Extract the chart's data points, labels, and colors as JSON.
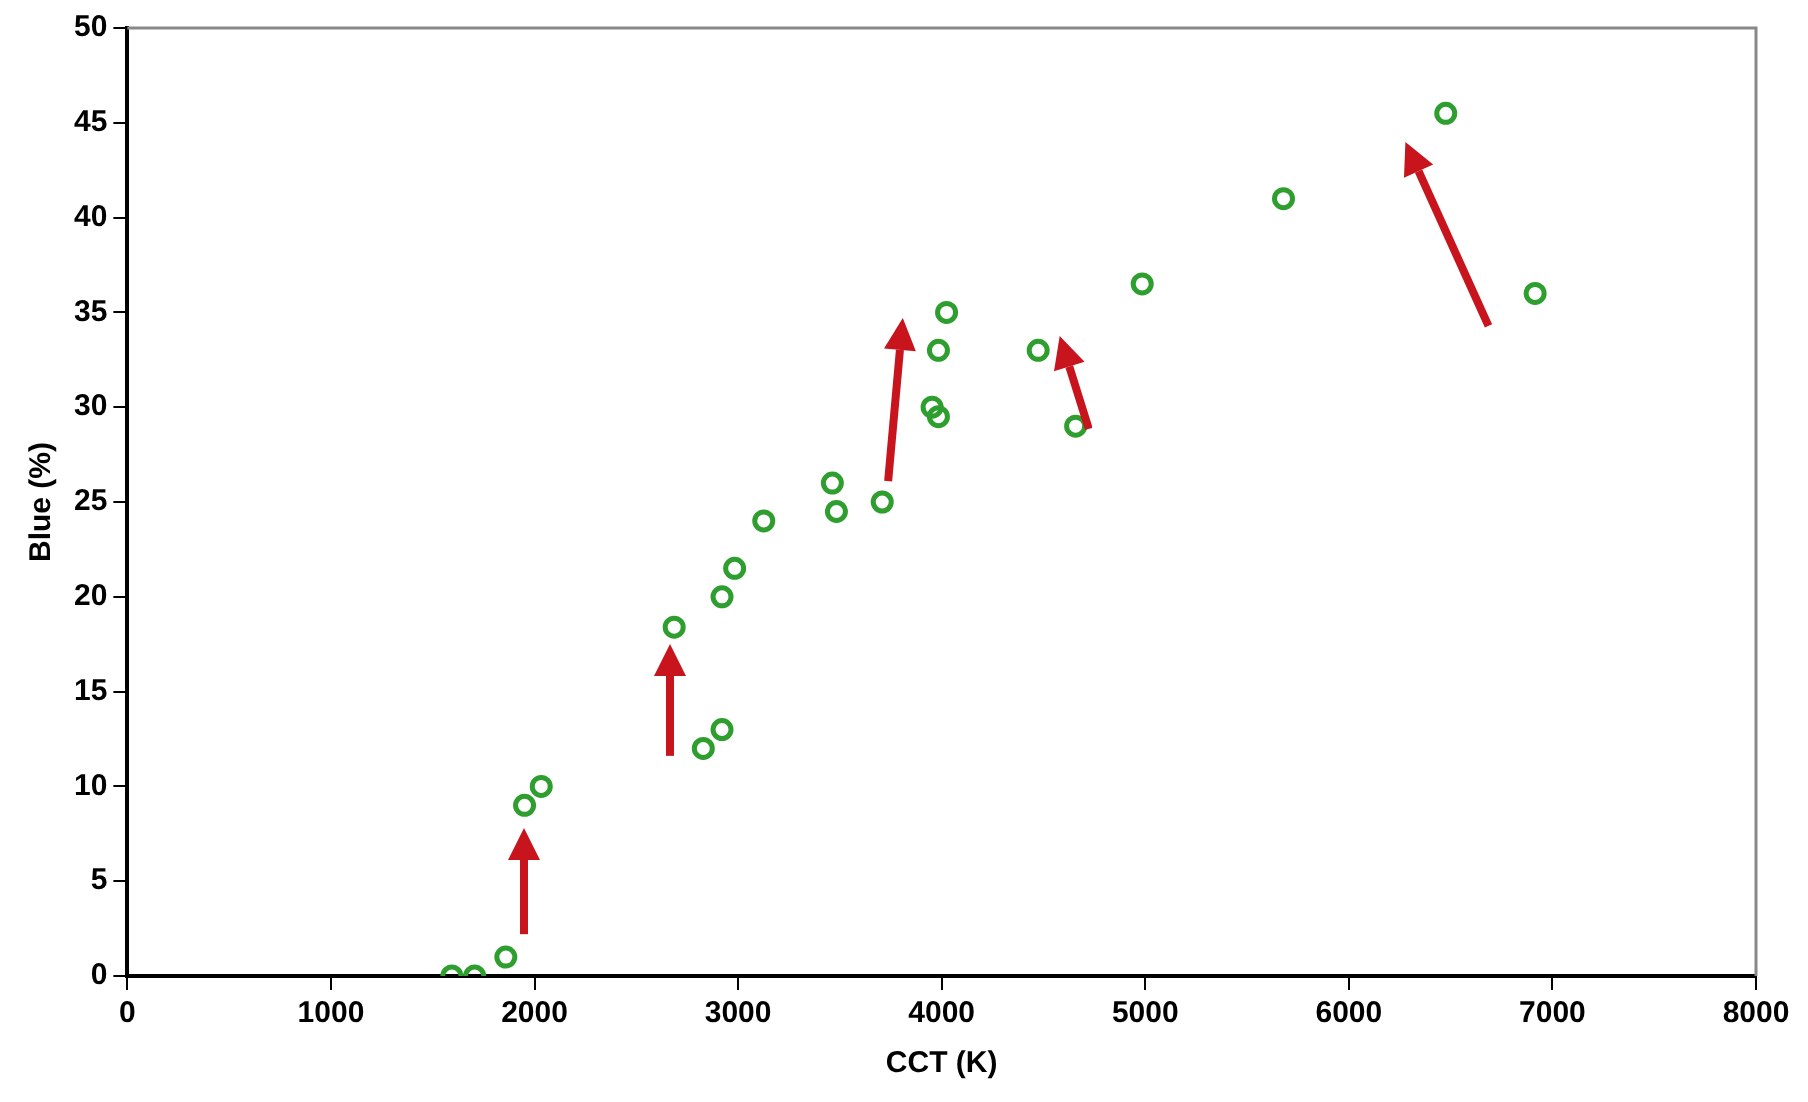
{
  "chart_data": {
    "type": "scatter",
    "xlabel": "CCT (K)",
    "ylabel": "Blue (%)",
    "xlim": [
      0,
      8000
    ],
    "xticks": [
      0,
      1000,
      2000,
      3000,
      4000,
      5000,
      6000,
      7000,
      8000
    ],
    "ylim": [
      0,
      50
    ],
    "yticks": [
      0,
      5,
      10,
      15,
      20,
      25,
      30,
      35,
      40,
      45,
      50
    ],
    "grid": false,
    "legend": false,
    "marker": "circle",
    "series": [
      {
        "color": "#2e9e2e",
        "x": [
          1594,
          1706,
          1859,
          1951,
          2033,
          2686,
          2829,
          2921,
          2921,
          2983,
          3126,
          3463,
          3483,
          3708,
          3953,
          3984,
          3984,
          4024,
          4474,
          4658,
          4985,
          5679,
          6476,
          6915
        ],
        "values": [
          0,
          0,
          1,
          9,
          10,
          18.4,
          12,
          13,
          20,
          21.5,
          24,
          26,
          24.5,
          25,
          30,
          29.5,
          33,
          35,
          33,
          29,
          36.5,
          41,
          45.5,
          36
        ]
      }
    ]
  }
}
